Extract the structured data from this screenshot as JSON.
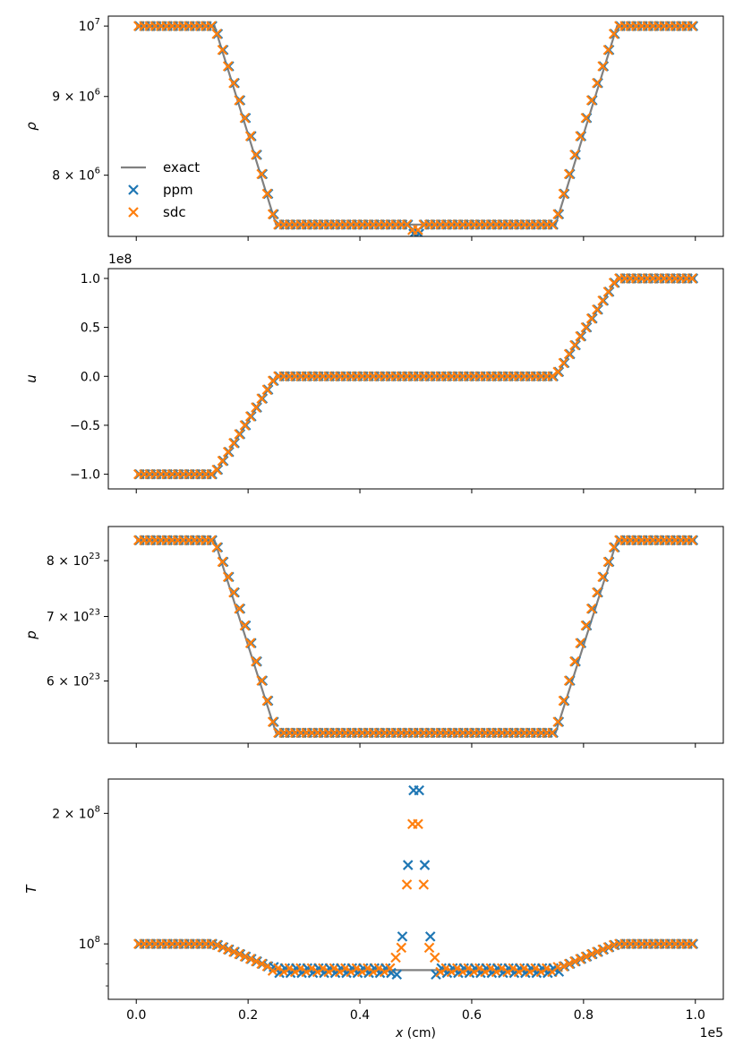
{
  "colors": {
    "exact": "#808080",
    "ppm": "#1f77b4",
    "sdc": "#ff7f0e"
  },
  "legend": {
    "placement": "center-left",
    "entries": [
      "exact",
      "ppm",
      "sdc"
    ]
  },
  "x_axis": {
    "label": "x (cm)",
    "ticks": [
      "0.0",
      "0.2",
      "0.4",
      "0.6",
      "0.8",
      "1.0"
    ],
    "tick_values": [
      0.0,
      0.2,
      0.4,
      0.6,
      0.8,
      1.0
    ],
    "offset_text": "1e5",
    "range": [
      -0.05,
      1.05
    ]
  },
  "chart_data": [
    {
      "type": "line",
      "ylabel": "ρ",
      "yscale": "log",
      "ylim": [
        7300000,
        10150000
      ],
      "yticks": [
        {
          "value": 10000000,
          "base": "10",
          "exp": "7",
          "mant": ""
        },
        {
          "value": 9000000,
          "base": "10",
          "exp": "6",
          "mant": "9 × "
        },
        {
          "value": 8000000,
          "base": "10",
          "exp": "6",
          "mant": "8 × "
        }
      ],
      "exact": [
        [
          0,
          10000000
        ],
        [
          14,
          10000000
        ],
        [
          25,
          7430000
        ],
        [
          75,
          7430000
        ],
        [
          86,
          10000000
        ],
        [
          100,
          10000000
        ]
      ],
      "ppm_dip": [
        {
          "x": 49.5,
          "y": 7330000
        },
        {
          "x": 50.5,
          "y": 7330000
        }
      ],
      "sdc_dip": [
        {
          "x": 49.5,
          "y": 7370000
        },
        {
          "x": 50.5,
          "y": 7370000
        }
      ]
    },
    {
      "type": "line",
      "ylabel": "u",
      "yscale": "linear",
      "ylim": [
        -1.15,
        1.1
      ],
      "offset_text": "1e8",
      "yticks": [
        {
          "value": 1.0,
          "text": "1.0"
        },
        {
          "value": 0.5,
          "text": "0.5"
        },
        {
          "value": 0.0,
          "text": "0.0"
        },
        {
          "value": -0.5,
          "text": "−0.5"
        },
        {
          "value": -1.0,
          "text": "−1.0"
        }
      ],
      "exact": [
        [
          0,
          -1.0
        ],
        [
          14,
          -1.0
        ],
        [
          25,
          0.0
        ],
        [
          75,
          0.0
        ],
        [
          86,
          1.0
        ],
        [
          100,
          1.0
        ]
      ]
    },
    {
      "type": "line",
      "ylabel": "p",
      "yscale": "log",
      "ylim": [
        5.17e+23,
        8.68e+23
      ],
      "yticks": [
        {
          "value": 8e+23,
          "base": "10",
          "exp": "23",
          "mant": "8 × "
        },
        {
          "value": 7e+23,
          "base": "10",
          "exp": "23",
          "mant": "7 × "
        },
        {
          "value": 6e+23,
          "base": "10",
          "exp": "23",
          "mant": "6 × "
        }
      ],
      "exact": [
        [
          0,
          8.4e+23
        ],
        [
          14,
          8.4e+23
        ],
        [
          25,
          5.3e+23
        ],
        [
          75,
          5.3e+23
        ],
        [
          86,
          8.4e+23
        ],
        [
          100,
          8.4e+23
        ]
      ]
    },
    {
      "type": "scatter",
      "ylabel": "T",
      "yscale": "log",
      "ylim": [
        74500000,
        240000000
      ],
      "yticks": [
        {
          "value": 200000000,
          "base": "10",
          "exp": "8",
          "mant": "2 × "
        },
        {
          "value": 100000000,
          "base": "10",
          "exp": "8",
          "mant": ""
        }
      ],
      "exact": [
        [
          0,
          100000000
        ],
        [
          14,
          100000000
        ],
        [
          25,
          87000000
        ],
        [
          75,
          87000000
        ],
        [
          86,
          100000000
        ],
        [
          100,
          100000000
        ]
      ],
      "ppm_spike": [
        {
          "x": 49.5,
          "y": 226000000
        },
        {
          "x": 50.5,
          "y": 226000000
        },
        {
          "x": 48.5,
          "y": 152000000
        },
        {
          "x": 51.5,
          "y": 152000000
        },
        {
          "x": 47.5,
          "y": 104000000
        },
        {
          "x": 52.5,
          "y": 104000000
        },
        {
          "x": 46.5,
          "y": 85000000
        },
        {
          "x": 53.5,
          "y": 85000000
        }
      ],
      "sdc_spike": [
        {
          "x": 49.5,
          "y": 189000000
        },
        {
          "x": 50.5,
          "y": 189000000
        },
        {
          "x": 48.5,
          "y": 137000000
        },
        {
          "x": 51.5,
          "y": 137000000
        },
        {
          "x": 47.5,
          "y": 98000000
        },
        {
          "x": 52.5,
          "y": 98000000
        },
        {
          "x": 46.5,
          "y": 93000000
        },
        {
          "x": 53.5,
          "y": 93000000
        }
      ]
    }
  ]
}
